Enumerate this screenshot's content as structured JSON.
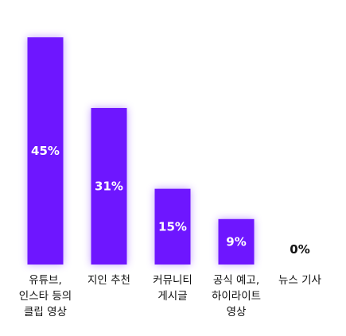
{
  "chart_data": {
    "type": "bar",
    "categories": [
      [
        "유튜브,",
        "인스타 등의",
        "클립 영상"
      ],
      [
        "지인 추천"
      ],
      [
        "커뮤니티",
        "게시글"
      ],
      [
        "공식 예고,",
        "하이라이트",
        "영상"
      ],
      [
        "뉴스 기사"
      ]
    ],
    "values": [
      45,
      31,
      15,
      9,
      0
    ],
    "value_labels": [
      "45%",
      "31%",
      "15%",
      "9%",
      "0%"
    ],
    "ylim": [
      0,
      45
    ],
    "grid": false,
    "legend": "none",
    "colors": {
      "bar": "#6e16ff",
      "label_inside": "#ffffff",
      "label_outside": "#111111",
      "category_text": "#111111"
    }
  }
}
